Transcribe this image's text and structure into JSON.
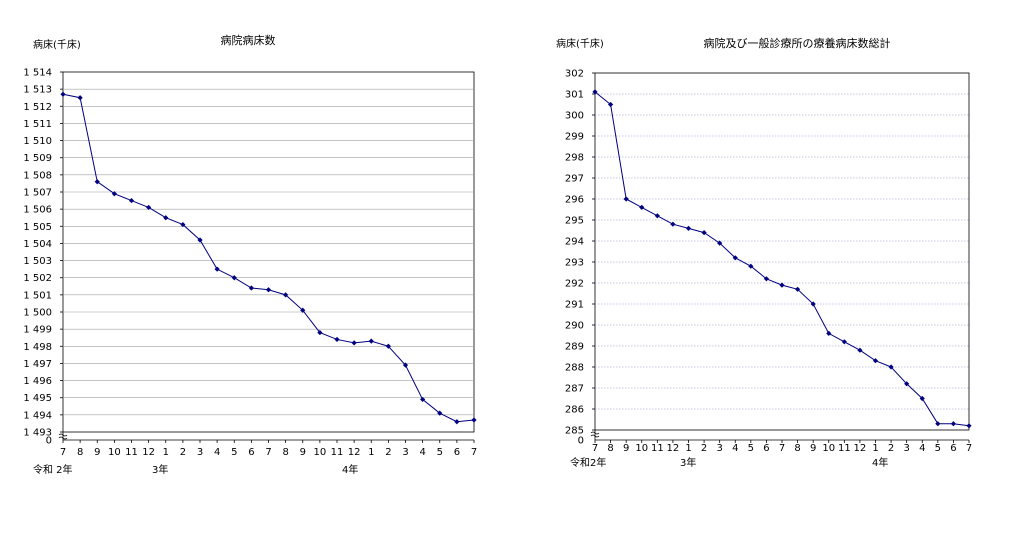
{
  "chart_data": [
    {
      "type": "line",
      "title": "病院病床数",
      "ylabel": "病床(千床)",
      "y_ticks": [
        "1 493",
        "1 494",
        "1 495",
        "1 496",
        "1 497",
        "1 498",
        "1 499",
        "1 500",
        "1 501",
        "1 502",
        "1 503",
        "1 504",
        "1 505",
        "1 506",
        "1 507",
        "1 508",
        "1 509",
        "1 510",
        "1 511",
        "1 512",
        "1 513",
        "1 514"
      ],
      "y_zero_label": "0",
      "ylim": [
        1493,
        1514
      ],
      "axis_break": true,
      "grid": "horizontal",
      "categories": [
        "7",
        "8",
        "9",
        "10",
        "11",
        "12",
        "1",
        "2",
        "3",
        "4",
        "5",
        "6",
        "7",
        "8",
        "9",
        "10",
        "11",
        "12",
        "1",
        "2",
        "3",
        "4",
        "5",
        "6",
        "7"
      ],
      "year_labels": [
        {
          "text": "令和 2年",
          "at_index": 0
        },
        {
          "text": "3年",
          "at_index": 6
        },
        {
          "text": "4年",
          "at_index": 18
        }
      ],
      "series": [
        {
          "values": [
            1512.7,
            1512.5,
            1507.6,
            1506.9,
            1506.5,
            1506.1,
            1505.5,
            1505.1,
            1504.2,
            1502.5,
            1502.0,
            1501.4,
            1501.3,
            1501.0,
            1500.1,
            1498.8,
            1498.4,
            1498.2,
            1498.3,
            1498.0,
            1496.9,
            1494.9,
            1494.1,
            1493.6,
            1493.7
          ]
        }
      ]
    },
    {
      "type": "line",
      "title": "病院及び一般診療所の療養病床数総計",
      "ylabel": "病床(千床)",
      "y_ticks": [
        "285",
        "286",
        "287",
        "288",
        "289",
        "290",
        "291",
        "292",
        "293",
        "294",
        "295",
        "296",
        "297",
        "298",
        "299",
        "300",
        "301",
        "302"
      ],
      "y_zero_label": "0",
      "ylim": [
        285,
        302
      ],
      "axis_break": true,
      "grid": "horizontal",
      "categories": [
        "7",
        "8",
        "9",
        "10",
        "11",
        "12",
        "1",
        "2",
        "3",
        "4",
        "5",
        "6",
        "7",
        "8",
        "9",
        "10",
        "11",
        "12",
        "1",
        "2",
        "3",
        "4",
        "5",
        "6",
        "7"
      ],
      "year_labels": [
        {
          "text": "令和2年",
          "at_index": 0
        },
        {
          "text": "3年",
          "at_index": 6
        },
        {
          "text": "4年",
          "at_index": 18
        }
      ],
      "series": [
        {
          "values": [
            301.1,
            300.5,
            296.0,
            295.6,
            295.2,
            294.8,
            294.6,
            294.4,
            293.9,
            293.2,
            292.8,
            292.2,
            291.9,
            291.7,
            291.0,
            289.6,
            289.2,
            288.8,
            288.3,
            288.0,
            287.2,
            286.5,
            285.3,
            285.3,
            285.2
          ]
        }
      ]
    }
  ]
}
